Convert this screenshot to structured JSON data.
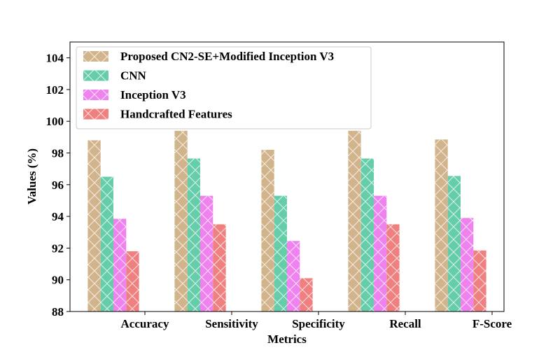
{
  "chart_data": {
    "type": "bar",
    "title": "",
    "xlabel": "Metrics",
    "ylabel": "Values (%)",
    "ylim": [
      88,
      105
    ],
    "yticks": [
      88,
      90,
      92,
      94,
      96,
      98,
      100,
      102,
      104
    ],
    "categories": [
      "Accuracy",
      "Sensitivity",
      "Specificity",
      "Recall",
      "F-Score"
    ],
    "series": [
      {
        "name": "Proposed CN2-SE+Modified Inception V3",
        "color": "#d2b48c",
        "values": [
          98.8,
          99.4,
          98.2,
          99.4,
          98.85
        ]
      },
      {
        "name": "CNN",
        "color": "#66cdaa",
        "values": [
          96.5,
          97.65,
          95.3,
          97.65,
          96.55
        ]
      },
      {
        "name": "Inception V3",
        "color": "#ee82ee",
        "values": [
          93.85,
          95.3,
          92.45,
          95.3,
          93.9
        ]
      },
      {
        "name": "Handcrafted Features",
        "color": "#f08080",
        "values": [
          91.8,
          93.5,
          90.1,
          93.5,
          91.85
        ]
      }
    ],
    "legend_position": "top-left",
    "hatch": "x",
    "grid": false
  }
}
